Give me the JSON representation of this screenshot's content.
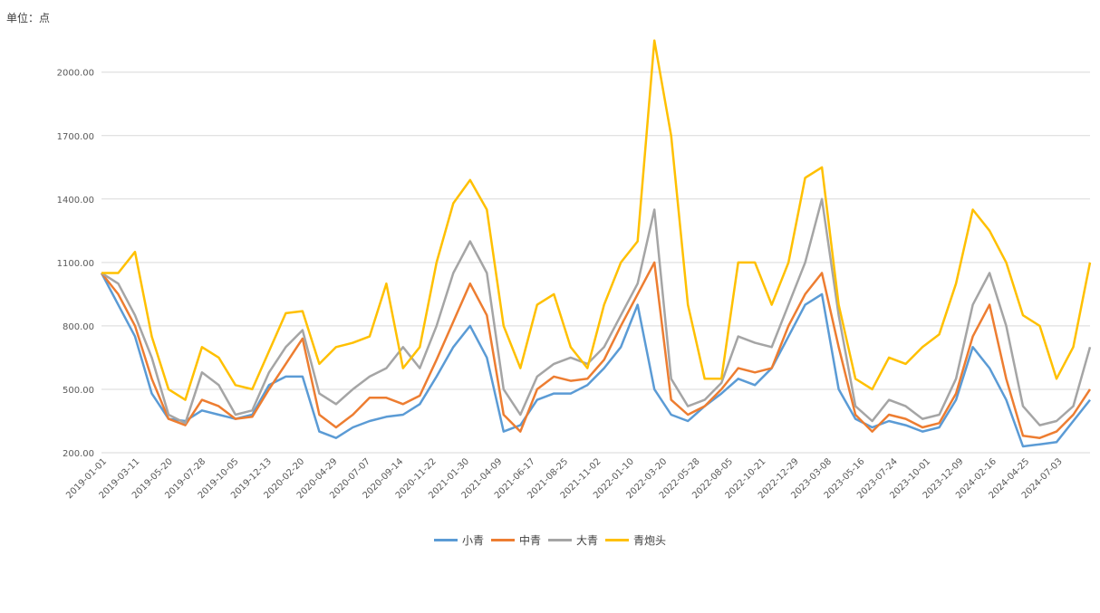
{
  "unit_label": "单位：点",
  "colors": {
    "xiaoqing": "#5b9bd5",
    "zhongqing": "#ed7d31",
    "daqing": "#a5a5a5",
    "qingpaotou": "#ffc000",
    "grid": "#d9d9d9"
  },
  "chart_data": {
    "type": "line",
    "title": "",
    "xlabel": "",
    "ylabel": "",
    "ylim": [
      200,
      2200
    ],
    "y_ticks": [
      "200.00",
      "500.00",
      "800.00",
      "1100.00",
      "1400.00",
      "1700.00",
      "2000.00"
    ],
    "x_ticks": [
      "2019-01-01",
      "2019-03-11",
      "2019-05-20",
      "2019-07-28",
      "2019-10-05",
      "2019-12-13",
      "2020-02-20",
      "2020-04-29",
      "2020-07-07",
      "2020-09-14",
      "2020-11-22",
      "2021-01-30",
      "2021-04-09",
      "2021-06-17",
      "2021-08-25",
      "2021-11-02",
      "2022-01-10",
      "2022-03-20",
      "2022-05-28",
      "2022-08-05",
      "2022-10-21",
      "2022-12-29",
      "2023-03-08",
      "2023-05-16",
      "2023-07-24",
      "2023-10-01",
      "2023-12-09",
      "2024-02-16",
      "2024-04-25",
      "2024-07-03"
    ],
    "x": [
      "2019-01-01",
      "2019-02-05",
      "2019-03-11",
      "2019-04-15",
      "2019-05-20",
      "2019-06-24",
      "2019-07-28",
      "2019-09-01",
      "2019-10-05",
      "2019-11-09",
      "2019-12-13",
      "2020-01-17",
      "2020-02-20",
      "2020-03-25",
      "2020-04-29",
      "2020-06-02",
      "2020-07-07",
      "2020-08-10",
      "2020-09-14",
      "2020-10-18",
      "2020-11-22",
      "2020-12-26",
      "2021-01-30",
      "2021-03-06",
      "2021-04-09",
      "2021-05-14",
      "2021-06-17",
      "2021-07-22",
      "2021-08-25",
      "2021-09-29",
      "2021-11-02",
      "2021-12-07",
      "2022-01-10",
      "2022-02-14",
      "2022-03-20",
      "2022-04-24",
      "2022-05-28",
      "2022-07-02",
      "2022-08-05",
      "2022-09-12",
      "2022-10-21",
      "2022-11-25",
      "2022-12-29",
      "2023-02-02",
      "2023-03-08",
      "2023-04-12",
      "2023-05-16",
      "2023-06-20",
      "2023-07-24",
      "2023-08-28",
      "2023-10-01",
      "2023-11-05",
      "2023-12-09",
      "2024-01-13",
      "2024-02-16",
      "2024-03-21",
      "2024-04-25",
      "2024-05-29",
      "2024-07-03",
      "2024-08-07"
    ],
    "series": [
      {
        "name": "小青",
        "color": "#5b9bd5",
        "values": [
          1050,
          900,
          750,
          480,
          360,
          350,
          400,
          380,
          360,
          380,
          520,
          560,
          560,
          300,
          270,
          320,
          350,
          370,
          380,
          430,
          560,
          700,
          800,
          650,
          300,
          330,
          450,
          480,
          480,
          520,
          600,
          700,
          900,
          500,
          380,
          350,
          420,
          480,
          550,
          520,
          600,
          750,
          900,
          950,
          500,
          360,
          320,
          350,
          330,
          300,
          320,
          450,
          700,
          600,
          450,
          230,
          240,
          250,
          350,
          450
        ]
      },
      {
        "name": "中青",
        "color": "#ed7d31",
        "values": [
          1050,
          950,
          800,
          550,
          360,
          330,
          450,
          420,
          360,
          370,
          500,
          620,
          740,
          380,
          320,
          380,
          460,
          460,
          430,
          470,
          640,
          820,
          1000,
          850,
          380,
          300,
          500,
          560,
          540,
          550,
          640,
          800,
          950,
          1100,
          450,
          380,
          420,
          500,
          600,
          580,
          600,
          800,
          950,
          1050,
          700,
          380,
          300,
          380,
          360,
          320,
          340,
          480,
          750,
          900,
          550,
          280,
          270,
          300,
          380,
          500
        ]
      },
      {
        "name": "大青",
        "color": "#a5a5a5",
        "values": [
          1050,
          1000,
          850,
          650,
          380,
          340,
          580,
          520,
          380,
          400,
          580,
          700,
          780,
          480,
          430,
          500,
          560,
          600,
          700,
          600,
          800,
          1050,
          1200,
          1050,
          500,
          380,
          560,
          620,
          650,
          620,
          700,
          850,
          1000,
          1350,
          550,
          420,
          450,
          530,
          750,
          720,
          700,
          900,
          1100,
          1400,
          850,
          420,
          350,
          450,
          420,
          360,
          380,
          550,
          900,
          1050,
          800,
          420,
          330,
          350,
          420,
          700
        ]
      },
      {
        "name": "青炮头",
        "color": "#ffc000",
        "values": [
          1050,
          1050,
          1150,
          750,
          500,
          450,
          700,
          650,
          520,
          500,
          680,
          860,
          870,
          620,
          700,
          720,
          750,
          1000,
          600,
          700,
          1100,
          1380,
          1490,
          1350,
          800,
          600,
          900,
          950,
          700,
          600,
          900,
          1100,
          1200,
          2150,
          1700,
          900,
          550,
          550,
          1100,
          1100,
          900,
          1100,
          1500,
          1550,
          900,
          550,
          500,
          650,
          620,
          700,
          760,
          1000,
          1350,
          1250,
          1100,
          850,
          800,
          550,
          700,
          1100
        ]
      }
    ]
  },
  "legend": [
    "小青",
    "中青",
    "大青",
    "青炮头"
  ]
}
